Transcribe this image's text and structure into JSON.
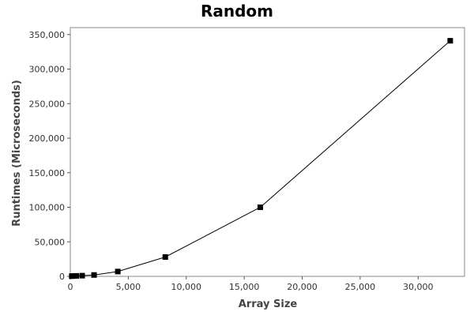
{
  "chart_data": {
    "type": "line",
    "title": "Random",
    "xlabel": "Array Size",
    "ylabel": "Runtimes (Microseconds)",
    "xlim": [
      0,
      34000
    ],
    "ylim": [
      0,
      360000
    ],
    "xticks": [
      0,
      5000,
      10000,
      15000,
      20000,
      25000,
      30000
    ],
    "xtick_labels": [
      "0",
      "5,000",
      "10,000",
      "15,000",
      "20,000",
      "25,000",
      "30,000"
    ],
    "yticks": [
      0,
      50000,
      100000,
      150000,
      200000,
      250000,
      300000,
      350000
    ],
    "ytick_labels": [
      "0",
      "50,000",
      "100,000",
      "150,000",
      "200,000",
      "250,000",
      "300,000",
      "350,000"
    ],
    "grid": false,
    "legend": "none",
    "colors": {
      "line": "#000000",
      "marker": "#000000",
      "frame": "#888888"
    },
    "marker": "square",
    "series": [
      {
        "x": [
          128,
          256,
          512,
          1024,
          2048,
          4096,
          8192,
          16384,
          32768
        ],
        "y": [
          300,
          500,
          700,
          1000,
          2000,
          7000,
          28000,
          100000,
          341000
        ]
      }
    ]
  }
}
